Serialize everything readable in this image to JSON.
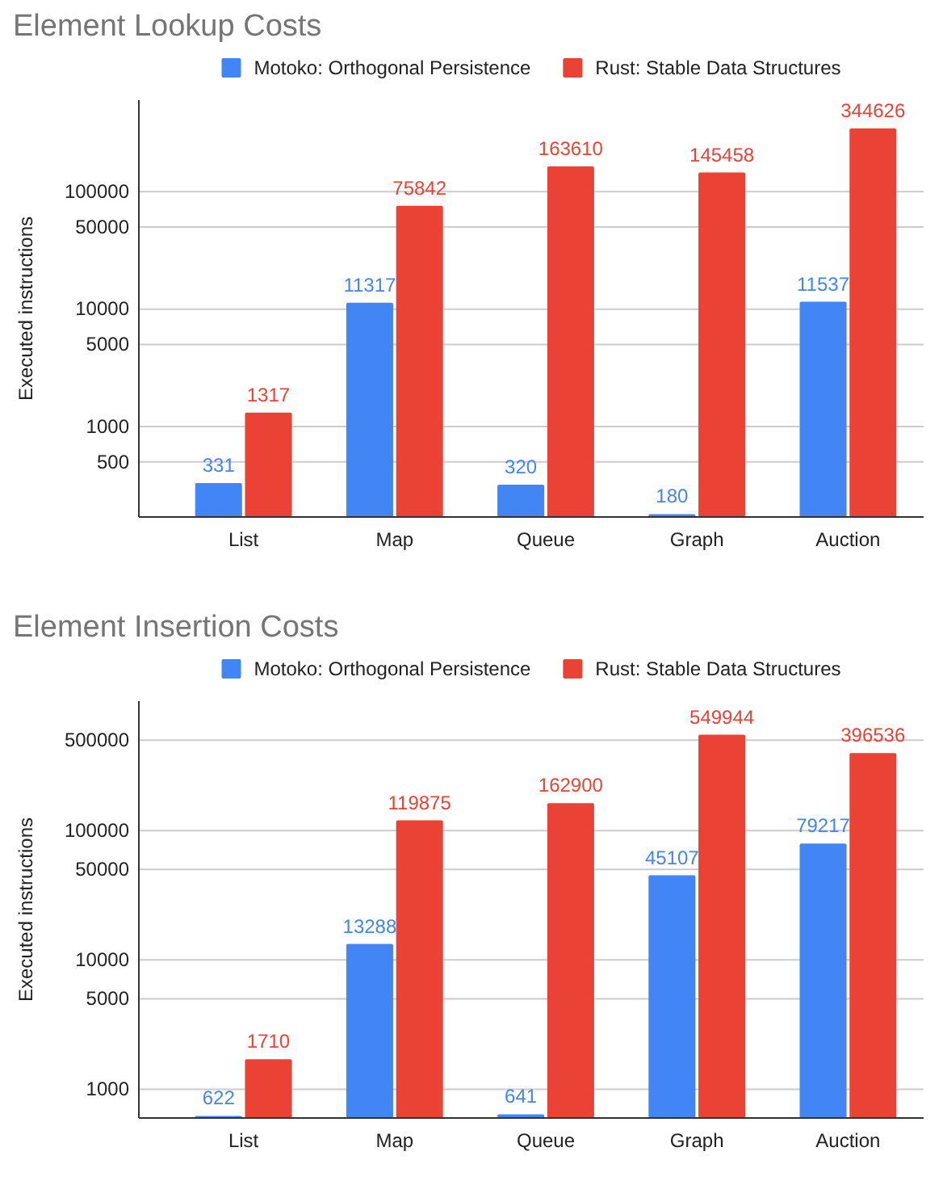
{
  "chart_data": [
    {
      "type": "bar",
      "title": "Element Lookup Costs",
      "ylabel": "Executed instructions",
      "categories": [
        "List",
        "Map",
        "Queue",
        "Graph",
        "Auction"
      ],
      "series": [
        {
          "name": "Motoko: Orthogonal Persistence",
          "color": "#4285f4",
          "values": [
            331,
            11317,
            320,
            180,
            11537
          ]
        },
        {
          "name": "Rust: Stable Data Structures",
          "color": "#ea4335",
          "values": [
            1317,
            75842,
            163610,
            145458,
            344626
          ]
        }
      ],
      "log": "y",
      "ylim": [
        170,
        600000
      ],
      "yticks": [
        500,
        1000,
        5000,
        10000,
        50000,
        100000
      ],
      "grid": "y",
      "legend": "top",
      "data_labels": true
    },
    {
      "type": "bar",
      "title": "Element Insertion Costs",
      "ylabel": "Executed instructions",
      "categories": [
        "List",
        "Map",
        "Queue",
        "Graph",
        "Auction"
      ],
      "series": [
        {
          "name": "Motoko: Orthogonal Persistence",
          "color": "#4285f4",
          "values": [
            622,
            13288,
            641,
            45107,
            79217
          ]
        },
        {
          "name": "Rust: Stable Data Structures",
          "color": "#ea4335",
          "values": [
            1710,
            119875,
            162900,
            549944,
            396536
          ]
        }
      ],
      "log": "y",
      "ylim": [
        600,
        1000000
      ],
      "yticks": [
        1000,
        5000,
        10000,
        50000,
        100000,
        500000
      ],
      "grid": "y",
      "legend": "top",
      "data_labels": true
    }
  ]
}
